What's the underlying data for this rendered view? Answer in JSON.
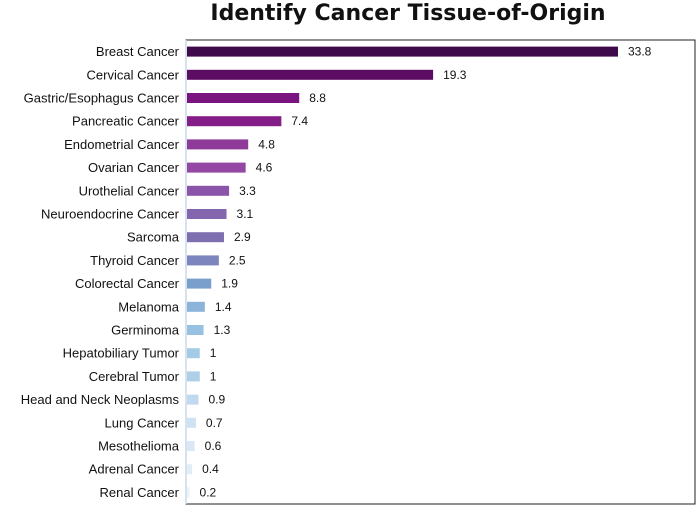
{
  "chart_data": {
    "type": "bar",
    "orientation": "horizontal",
    "title": "Identify Cancer Tissue-of-Origin",
    "categories": [
      "Breast Cancer",
      "Cervical Cancer",
      "Gastric/Esophagus Cancer",
      "Pancreatic Cancer",
      "Endometrial Cancer",
      "Ovarian Cancer",
      "Urothelial Cancer",
      "Neuroendocrine Cancer",
      "Sarcoma",
      "Thyroid Cancer",
      "Colorectal Cancer",
      "Melanoma",
      "Germinoma",
      "Hepatobiliary Tumor",
      "Cerebral Tumor",
      "Head and Neck Neoplasms",
      "Lung Cancer",
      "Mesothelioma",
      "Adrenal Cancer",
      "Renal Cancer"
    ],
    "values": [
      33.8,
      19.3,
      8.8,
      7.4,
      4.8,
      4.6,
      3.3,
      3.1,
      2.9,
      2.5,
      1.9,
      1.4,
      1.3,
      1,
      1,
      0.9,
      0.7,
      0.6,
      0.4,
      0.2
    ],
    "value_labels": [
      "33.8",
      "19.3",
      "8.8",
      "7.4",
      "4.8",
      "4.6",
      "3.3",
      "3.1",
      "2.9",
      "2.5",
      "1.9",
      "1.4",
      "1.3",
      "1",
      "1",
      "0.9",
      "0.7",
      "0.6",
      "0.4",
      "0.2"
    ],
    "bar_colors": [
      "#3f0a4a",
      "#5c0c62",
      "#7a1480",
      "#851d88",
      "#8e3a99",
      "#9448a4",
      "#8a55a8",
      "#8466ae",
      "#7d6fb0",
      "#7d85bf",
      "#7b9fcd",
      "#8cb4da",
      "#97c1e0",
      "#a3cbe6",
      "#adcfe8",
      "#c0d9ee",
      "#cfe2f2",
      "#dae8f5",
      "#e2edf7",
      "#ebf2f9"
    ],
    "xlim": [
      0,
      36
    ],
    "xlabel": "",
    "ylabel": "",
    "grid": false,
    "legend": "none"
  }
}
